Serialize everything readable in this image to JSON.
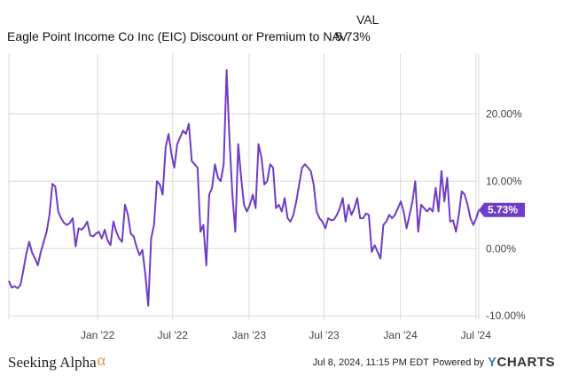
{
  "header": {
    "column_label": "VAL",
    "title": "Eagle Point Income Co Inc (EIC) Discount or Premium to NAV",
    "latest_value": "5.73%"
  },
  "footer": {
    "brand": "Seeking Alpha",
    "brand_symbol": "α",
    "timestamp": "Jul 8, 2024, 11:15 PM EDT",
    "powered_by": "Powered by",
    "provider_y": "Y",
    "provider_rest": "CHARTS"
  },
  "colors": {
    "line": "#6f3cc9",
    "grid": "#d9d9d9",
    "label_bg": "#6f3cc9"
  },
  "chart_data": {
    "type": "line",
    "title": "Eagle Point Income Co Inc (EIC) Discount or Premium to NAV",
    "xlabel": "",
    "ylabel": "",
    "x_ticks": [
      "Jan '22",
      "Jul '22",
      "Jan '23",
      "Jul '23",
      "Jan '24",
      "Jul '24"
    ],
    "y_ticks": [
      "-10.00%",
      "0.00%",
      "10.00%",
      "20.00%"
    ],
    "ylim": [
      -10.5,
      29
    ],
    "grid": true,
    "last_label": "5.73%",
    "series": [
      {
        "values": [
          [
            "2021-06-01",
            -4.8
          ],
          [
            "2021-06-08",
            -5.8
          ],
          [
            "2021-06-15",
            -5.6
          ],
          [
            "2021-06-22",
            -5.9
          ],
          [
            "2021-06-29",
            -5.4
          ],
          [
            "2021-07-06",
            -3.2
          ],
          [
            "2021-07-13",
            -0.8
          ],
          [
            "2021-07-20",
            1.0
          ],
          [
            "2021-07-27",
            -0.6
          ],
          [
            "2021-08-03",
            -1.5
          ],
          [
            "2021-08-10",
            -2.5
          ],
          [
            "2021-08-17",
            -0.5
          ],
          [
            "2021-08-24",
            1.0
          ],
          [
            "2021-08-31",
            2.5
          ],
          [
            "2021-09-07",
            5.0
          ],
          [
            "2021-09-14",
            9.6
          ],
          [
            "2021-09-21",
            9.2
          ],
          [
            "2021-09-28",
            5.5
          ],
          [
            "2021-10-05",
            4.5
          ],
          [
            "2021-10-12",
            3.8
          ],
          [
            "2021-10-19",
            3.5
          ],
          [
            "2021-10-26",
            3.8
          ],
          [
            "2021-11-02",
            4.5
          ],
          [
            "2021-11-09",
            0.3
          ],
          [
            "2021-11-16",
            3.0
          ],
          [
            "2021-11-23",
            2.8
          ],
          [
            "2021-11-30",
            3.2
          ],
          [
            "2021-12-07",
            4.0
          ],
          [
            "2021-12-14",
            2.0
          ],
          [
            "2021-12-21",
            1.8
          ],
          [
            "2021-12-28",
            2.2
          ],
          [
            "2022-01-04",
            2.5
          ],
          [
            "2022-01-11",
            1.5
          ],
          [
            "2022-01-18",
            2.8
          ],
          [
            "2022-01-25",
            1.2
          ],
          [
            "2022-02-01",
            0.5
          ],
          [
            "2022-02-08",
            4.0
          ],
          [
            "2022-02-15",
            2.5
          ],
          [
            "2022-02-22",
            1.5
          ],
          [
            "2022-03-01",
            1.0
          ],
          [
            "2022-03-08",
            6.5
          ],
          [
            "2022-03-15",
            5.0
          ],
          [
            "2022-03-22",
            2.2
          ],
          [
            "2022-03-29",
            1.8
          ],
          [
            "2022-04-05",
            0.2
          ],
          [
            "2022-04-12",
            -1.0
          ],
          [
            "2022-04-19",
            -0.2
          ],
          [
            "2022-04-26",
            -3.8
          ],
          [
            "2022-05-03",
            -8.5
          ],
          [
            "2022-05-10",
            1.5
          ],
          [
            "2022-05-17",
            3.5
          ],
          [
            "2022-05-24",
            10.0
          ],
          [
            "2022-05-31",
            9.5
          ],
          [
            "2022-06-07",
            8.0
          ],
          [
            "2022-06-14",
            15.0
          ],
          [
            "2022-06-21",
            17.0
          ],
          [
            "2022-06-28",
            14.0
          ],
          [
            "2022-07-05",
            12.0
          ],
          [
            "2022-07-12",
            15.5
          ],
          [
            "2022-07-19",
            16.5
          ],
          [
            "2022-07-26",
            17.5
          ],
          [
            "2022-08-02",
            17.0
          ],
          [
            "2022-08-09",
            18.5
          ],
          [
            "2022-08-16",
            13.0
          ],
          [
            "2022-08-23",
            12.5
          ],
          [
            "2022-08-30",
            12.0
          ],
          [
            "2022-09-06",
            2.5
          ],
          [
            "2022-09-13",
            3.5
          ],
          [
            "2022-09-20",
            -2.5
          ],
          [
            "2022-09-27",
            8.0
          ],
          [
            "2022-10-04",
            9.0
          ],
          [
            "2022-10-11",
            12.5
          ],
          [
            "2022-10-18",
            10.5
          ],
          [
            "2022-10-25",
            10.0
          ],
          [
            "2022-11-01",
            12.5
          ],
          [
            "2022-11-08",
            26.5
          ],
          [
            "2022-11-15",
            16.0
          ],
          [
            "2022-11-22",
            8.0
          ],
          [
            "2022-11-29",
            2.5
          ],
          [
            "2022-12-06",
            15.5
          ],
          [
            "2022-12-13",
            10.5
          ],
          [
            "2022-12-20",
            6.5
          ],
          [
            "2022-12-27",
            5.5
          ],
          [
            "2023-01-03",
            6.5
          ],
          [
            "2023-01-10",
            8.0
          ],
          [
            "2023-01-17",
            6.0
          ],
          [
            "2023-01-24",
            15.5
          ],
          [
            "2023-01-31",
            13.5
          ],
          [
            "2023-02-07",
            9.5
          ],
          [
            "2023-02-14",
            10.0
          ],
          [
            "2023-02-21",
            12.5
          ],
          [
            "2023-02-28",
            12.0
          ],
          [
            "2023-03-07",
            6.0
          ],
          [
            "2023-03-14",
            6.5
          ],
          [
            "2023-03-21",
            5.5
          ],
          [
            "2023-03-28",
            7.5
          ],
          [
            "2023-04-04",
            4.5
          ],
          [
            "2023-04-11",
            4.0
          ],
          [
            "2023-04-18",
            5.0
          ],
          [
            "2023-04-25",
            7.0
          ],
          [
            "2023-05-02",
            9.5
          ],
          [
            "2023-05-09",
            12.0
          ],
          [
            "2023-05-16",
            12.5
          ],
          [
            "2023-05-23",
            12.0
          ],
          [
            "2023-05-30",
            11.5
          ],
          [
            "2023-06-06",
            9.5
          ],
          [
            "2023-06-13",
            5.5
          ],
          [
            "2023-06-20",
            4.5
          ],
          [
            "2023-06-27",
            4.0
          ],
          [
            "2023-07-04",
            3.0
          ],
          [
            "2023-07-11",
            4.5
          ],
          [
            "2023-07-18",
            4.2
          ],
          [
            "2023-07-25",
            4.3
          ],
          [
            "2023-08-01",
            5.0
          ],
          [
            "2023-08-08",
            6.0
          ],
          [
            "2023-08-15",
            7.5
          ],
          [
            "2023-08-22",
            4.0
          ],
          [
            "2023-08-29",
            6.5
          ],
          [
            "2023-09-05",
            5.0
          ],
          [
            "2023-09-12",
            6.0
          ],
          [
            "2023-09-19",
            7.5
          ],
          [
            "2023-09-26",
            4.5
          ],
          [
            "2023-10-03",
            4.5
          ],
          [
            "2023-10-10",
            5.2
          ],
          [
            "2023-10-17",
            5.0
          ],
          [
            "2023-10-24",
            -0.5
          ],
          [
            "2023-10-31",
            0.5
          ],
          [
            "2023-11-07",
            -0.5
          ],
          [
            "2023-11-14",
            -1.5
          ],
          [
            "2023-11-21",
            3.5
          ],
          [
            "2023-11-28",
            4.0
          ],
          [
            "2023-12-05",
            5.0
          ],
          [
            "2023-12-12",
            4.5
          ],
          [
            "2023-12-19",
            5.0
          ],
          [
            "2023-12-26",
            6.0
          ],
          [
            "2024-01-02",
            7.0
          ],
          [
            "2024-01-09",
            5.5
          ],
          [
            "2024-01-16",
            3.0
          ],
          [
            "2024-01-23",
            5.0
          ],
          [
            "2024-01-30",
            7.0
          ],
          [
            "2024-02-06",
            10.0
          ],
          [
            "2024-02-13",
            2.5
          ],
          [
            "2024-02-20",
            6.5
          ],
          [
            "2024-02-27",
            6.0
          ],
          [
            "2024-03-05",
            5.5
          ],
          [
            "2024-03-12",
            6.0
          ],
          [
            "2024-03-19",
            5.5
          ],
          [
            "2024-03-26",
            9.0
          ],
          [
            "2024-04-02",
            5.5
          ],
          [
            "2024-04-09",
            11.5
          ],
          [
            "2024-04-16",
            7.0
          ],
          [
            "2024-04-23",
            10.5
          ],
          [
            "2024-04-30",
            4.0
          ],
          [
            "2024-05-07",
            4.2
          ],
          [
            "2024-05-14",
            2.5
          ],
          [
            "2024-05-21",
            5.0
          ],
          [
            "2024-05-28",
            8.5
          ],
          [
            "2024-06-04",
            8.0
          ],
          [
            "2024-06-11",
            6.5
          ],
          [
            "2024-06-18",
            4.5
          ],
          [
            "2024-06-25",
            3.5
          ],
          [
            "2024-07-02",
            4.5
          ],
          [
            "2024-07-08",
            5.73
          ]
        ]
      }
    ]
  }
}
